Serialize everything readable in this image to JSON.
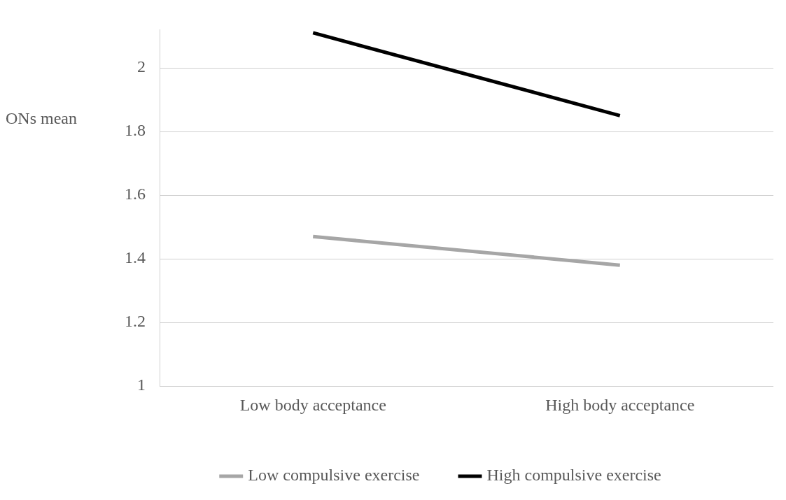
{
  "chart_data": {
    "type": "line",
    "ylabel": "ONs mean",
    "categories": [
      "Low body acceptance",
      "High body acceptance"
    ],
    "series": [
      {
        "name": "Low compulsive exercise",
        "color": "#a6a6a6",
        "values": [
          1.47,
          1.38
        ]
      },
      {
        "name": "High compulsive exercise",
        "color": "#000000",
        "values": [
          2.11,
          1.85
        ]
      }
    ],
    "ylim": [
      1,
      2.12
    ],
    "yticks": [
      1,
      1.2,
      1.4,
      1.6,
      1.8,
      2
    ],
    "grid": "y",
    "legend": "bottom",
    "marker": "none",
    "line_style": "solid"
  }
}
